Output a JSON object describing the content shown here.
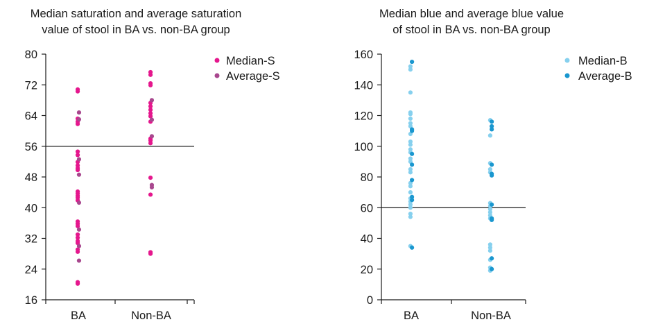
{
  "chart_data": [
    {
      "type": "scatter",
      "title_lines": [
        "Median saturation and average saturation",
        "value of stool in BA vs. non-BA group"
      ],
      "categories": [
        "BA",
        "Non-BA"
      ],
      "ylim": [
        16,
        80
      ],
      "yticks": [
        "16",
        "24",
        "32",
        "40",
        "48",
        "56",
        "64",
        "72",
        "80"
      ],
      "reference_line": 56,
      "legend_position": "top-right",
      "series": [
        {
          "name": "Median-S",
          "color": "#e5178d",
          "points": [
            [
              "BA",
              70.8
            ],
            [
              "BA",
              70.3
            ],
            [
              "BA",
              63.2
            ],
            [
              "BA",
              62.4
            ],
            [
              "BA",
              61.8
            ],
            [
              "BA",
              54.6
            ],
            [
              "BA",
              53.7
            ],
            [
              "BA",
              51.9
            ],
            [
              "BA",
              51.0
            ],
            [
              "BA",
              50.3
            ],
            [
              "BA",
              49.8
            ],
            [
              "BA",
              44.2
            ],
            [
              "BA",
              43.7
            ],
            [
              "BA",
              43.1
            ],
            [
              "BA",
              42.6
            ],
            [
              "BA",
              41.9
            ],
            [
              "BA",
              36.4
            ],
            [
              "BA",
              35.8
            ],
            [
              "BA",
              35.2
            ],
            [
              "BA",
              33.0
            ],
            [
              "BA",
              32.2
            ],
            [
              "BA",
              31.3
            ],
            [
              "BA",
              30.8
            ],
            [
              "BA",
              29.1
            ],
            [
              "BA",
              28.5
            ],
            [
              "BA",
              20.6
            ],
            [
              "BA",
              20.2
            ],
            [
              "Non-BA",
              75.3
            ],
            [
              "Non-BA",
              74.6
            ],
            [
              "Non-BA",
              72.4
            ],
            [
              "Non-BA",
              71.9
            ],
            [
              "Non-BA",
              67.3
            ],
            [
              "Non-BA",
              66.4
            ],
            [
              "Non-BA",
              65.5
            ],
            [
              "Non-BA",
              64.6
            ],
            [
              "Non-BA",
              63.8
            ],
            [
              "Non-BA",
              62.4
            ],
            [
              "Non-BA",
              58.0
            ],
            [
              "Non-BA",
              57.5
            ],
            [
              "Non-BA",
              56.8
            ],
            [
              "Non-BA",
              47.8
            ],
            [
              "Non-BA",
              43.4
            ],
            [
              "Non-BA",
              28.4
            ],
            [
              "Non-BA",
              28.0
            ]
          ]
        },
        {
          "name": "Average-S",
          "color": "#a8478e",
          "points": [
            [
              "BA",
              64.8
            ],
            [
              "BA",
              63.0
            ],
            [
              "BA",
              52.6
            ],
            [
              "BA",
              48.6
            ],
            [
              "BA",
              41.3
            ],
            [
              "BA",
              34.3
            ],
            [
              "BA",
              30.0
            ],
            [
              "BA",
              26.2
            ],
            [
              "Non-BA",
              68.0
            ],
            [
              "Non-BA",
              62.9
            ],
            [
              "Non-BA",
              58.6
            ],
            [
              "Non-BA",
              45.9
            ],
            [
              "Non-BA",
              45.3
            ]
          ]
        }
      ]
    },
    {
      "type": "scatter",
      "title_lines": [
        "Median blue and average blue value",
        "of stool in BA vs. non-BA group"
      ],
      "categories": [
        "BA",
        "Non-BA"
      ],
      "ylim": [
        0,
        160
      ],
      "yticks": [
        "0",
        "20",
        "40",
        "60",
        "80",
        "100",
        "120",
        "140",
        "160"
      ],
      "reference_line": 60,
      "legend_position": "top-right",
      "series": [
        {
          "name": "Median-B",
          "color": "#86d0ee",
          "points": [
            [
              "BA",
              152
            ],
            [
              "BA",
              150
            ],
            [
              "BA",
              135
            ],
            [
              "BA",
              122
            ],
            [
              "BA",
              121
            ],
            [
              "BA",
              118
            ],
            [
              "BA",
              115
            ],
            [
              "BA",
              113
            ],
            [
              "BA",
              108
            ],
            [
              "BA",
              103
            ],
            [
              "BA",
              101
            ],
            [
              "BA",
              98
            ],
            [
              "BA",
              96
            ],
            [
              "BA",
              92
            ],
            [
              "BA",
              90
            ],
            [
              "BA",
              85
            ],
            [
              "BA",
              83
            ],
            [
              "BA",
              76
            ],
            [
              "BA",
              74
            ],
            [
              "BA",
              70
            ],
            [
              "BA",
              66
            ],
            [
              "BA",
              64
            ],
            [
              "BA",
              62
            ],
            [
              "BA",
              60
            ],
            [
              "BA",
              56
            ],
            [
              "BA",
              54
            ],
            [
              "BA",
              35
            ],
            [
              "Non-BA",
              117
            ],
            [
              "Non-BA",
              107
            ],
            [
              "Non-BA",
              89
            ],
            [
              "Non-BA",
              85
            ],
            [
              "Non-BA",
              83
            ],
            [
              "Non-BA",
              63
            ],
            [
              "Non-BA",
              61
            ],
            [
              "Non-BA",
              59
            ],
            [
              "Non-BA",
              57
            ],
            [
              "Non-BA",
              55
            ],
            [
              "Non-BA",
              53
            ],
            [
              "Non-BA",
              36
            ],
            [
              "Non-BA",
              34
            ],
            [
              "Non-BA",
              32
            ],
            [
              "Non-BA",
              26
            ],
            [
              "Non-BA",
              21
            ],
            [
              "Non-BA",
              19
            ]
          ]
        },
        {
          "name": "Average-B",
          "color": "#1a97cf",
          "points": [
            [
              "BA",
              155
            ],
            [
              "BA",
              111
            ],
            [
              "BA",
              110
            ],
            [
              "BA",
              95
            ],
            [
              "BA",
              88
            ],
            [
              "BA",
              78
            ],
            [
              "BA",
              67
            ],
            [
              "BA",
              65
            ],
            [
              "BA",
              34
            ],
            [
              "Non-BA",
              116
            ],
            [
              "Non-BA",
              113
            ],
            [
              "Non-BA",
              111
            ],
            [
              "Non-BA",
              88
            ],
            [
              "Non-BA",
              82
            ],
            [
              "Non-BA",
              81
            ],
            [
              "Non-BA",
              62
            ],
            [
              "Non-BA",
              53
            ],
            [
              "Non-BA",
              52
            ],
            [
              "Non-BA",
              27
            ],
            [
              "Non-BA",
              20
            ]
          ]
        }
      ]
    }
  ]
}
